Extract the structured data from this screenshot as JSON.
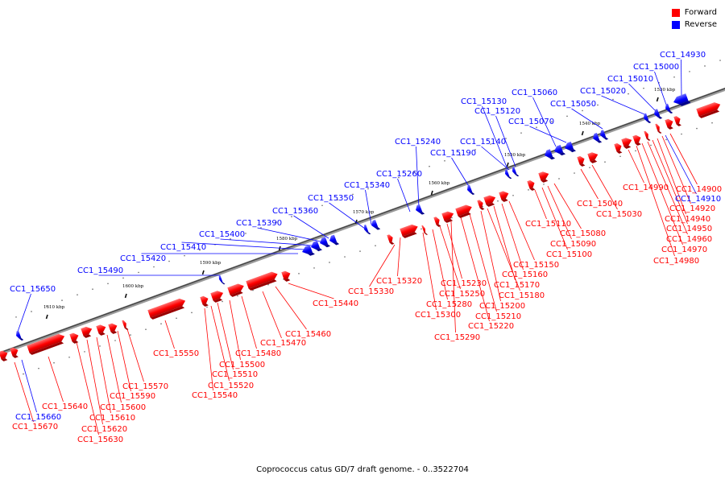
{
  "legend": {
    "forward_label": "Forward",
    "reverse_label": "Reverse",
    "forward_color": "#ff0000",
    "reverse_color": "#0000ff"
  },
  "caption": "Coprococcus catus GD/7 draft genome. - 0..3522704",
  "axis": {
    "ticks": [
      {
        "kbp": 1530,
        "label": "1530 kbp"
      },
      {
        "kbp": 1540,
        "label": "1540 kbp"
      },
      {
        "kbp": 1550,
        "label": "1550 kbp"
      },
      {
        "kbp": 1560,
        "label": "1560 kbp"
      },
      {
        "kbp": 1570,
        "label": "1570 kbp"
      },
      {
        "kbp": 1580,
        "label": "1580 kbp"
      },
      {
        "kbp": 1590,
        "label": "1590 kbp"
      },
      {
        "kbp": 1600,
        "label": "1600 kbp"
      },
      {
        "kbp": 1610,
        "label": "1610 kbp"
      }
    ]
  },
  "genes": [
    {
      "id": "CC1_14900",
      "strand": "forward"
    },
    {
      "id": "CC1_14910",
      "strand": "reverse"
    },
    {
      "id": "CC1_14920",
      "strand": "forward"
    },
    {
      "id": "CC1_14930",
      "strand": "reverse"
    },
    {
      "id": "CC1_14940",
      "strand": "forward"
    },
    {
      "id": "CC1_14950",
      "strand": "forward"
    },
    {
      "id": "CC1_14960",
      "strand": "forward"
    },
    {
      "id": "CC1_14970",
      "strand": "forward"
    },
    {
      "id": "CC1_14980",
      "strand": "forward"
    },
    {
      "id": "CC1_14990",
      "strand": "forward"
    },
    {
      "id": "CC1_15000",
      "strand": "reverse"
    },
    {
      "id": "CC1_15010",
      "strand": "reverse"
    },
    {
      "id": "CC1_15020",
      "strand": "reverse"
    },
    {
      "id": "CC1_15030",
      "strand": "forward"
    },
    {
      "id": "CC1_15040",
      "strand": "forward"
    },
    {
      "id": "CC1_15050",
      "strand": "reverse"
    },
    {
      "id": "CC1_15060",
      "strand": "reverse"
    },
    {
      "id": "CC1_15070",
      "strand": "reverse"
    },
    {
      "id": "CC1_15080",
      "strand": "forward"
    },
    {
      "id": "CC1_15090",
      "strand": "forward"
    },
    {
      "id": "CC1_15100",
      "strand": "forward"
    },
    {
      "id": "CC1_15110",
      "strand": "forward"
    },
    {
      "id": "CC1_15120",
      "strand": "reverse"
    },
    {
      "id": "CC1_15130",
      "strand": "reverse"
    },
    {
      "id": "CC1_15140",
      "strand": "reverse"
    },
    {
      "id": "CC1_15150",
      "strand": "forward"
    },
    {
      "id": "CC1_15160",
      "strand": "forward"
    },
    {
      "id": "CC1_15170",
      "strand": "forward"
    },
    {
      "id": "CC1_15180",
      "strand": "forward"
    },
    {
      "id": "CC1_15190",
      "strand": "reverse"
    },
    {
      "id": "CC1_15200",
      "strand": "forward"
    },
    {
      "id": "CC1_15210",
      "strand": "forward"
    },
    {
      "id": "CC1_15220",
      "strand": "forward"
    },
    {
      "id": "CC1_15230",
      "strand": "forward"
    },
    {
      "id": "CC1_15240",
      "strand": "reverse"
    },
    {
      "id": "CC1_15250",
      "strand": "forward"
    },
    {
      "id": "CC1_15260",
      "strand": "reverse"
    },
    {
      "id": "CC1_15280",
      "strand": "forward"
    },
    {
      "id": "CC1_15290",
      "strand": "forward"
    },
    {
      "id": "CC1_15300",
      "strand": "forward"
    },
    {
      "id": "CC1_15320",
      "strand": "forward"
    },
    {
      "id": "CC1_15330",
      "strand": "forward"
    },
    {
      "id": "CC1_15340",
      "strand": "reverse"
    },
    {
      "id": "CC1_15350",
      "strand": "reverse"
    },
    {
      "id": "CC1_15360",
      "strand": "reverse"
    },
    {
      "id": "CC1_15390",
      "strand": "reverse"
    },
    {
      "id": "CC1_15400",
      "strand": "reverse"
    },
    {
      "id": "CC1_15410",
      "strand": "reverse"
    },
    {
      "id": "CC1_15420",
      "strand": "reverse"
    },
    {
      "id": "CC1_15440",
      "strand": "forward"
    },
    {
      "id": "CC1_15460",
      "strand": "forward"
    },
    {
      "id": "CC1_15470",
      "strand": "forward"
    },
    {
      "id": "CC1_15480",
      "strand": "forward"
    },
    {
      "id": "CC1_15490",
      "strand": "reverse"
    },
    {
      "id": "CC1_15500",
      "strand": "forward"
    },
    {
      "id": "CC1_15510",
      "strand": "forward"
    },
    {
      "id": "CC1_15520",
      "strand": "forward"
    },
    {
      "id": "CC1_15540",
      "strand": "forward"
    },
    {
      "id": "CC1_15550",
      "strand": "forward"
    },
    {
      "id": "CC1_15570",
      "strand": "forward"
    },
    {
      "id": "CC1_15590",
      "strand": "forward"
    },
    {
      "id": "CC1_15600",
      "strand": "forward"
    },
    {
      "id": "CC1_15610",
      "strand": "forward"
    },
    {
      "id": "CC1_15620",
      "strand": "forward"
    },
    {
      "id": "CC1_15630",
      "strand": "forward"
    },
    {
      "id": "CC1_15640",
      "strand": "forward"
    },
    {
      "id": "CC1_15650",
      "strand": "reverse"
    },
    {
      "id": "CC1_15660",
      "strand": "reverse"
    },
    {
      "id": "CC1_15670",
      "strand": "forward"
    }
  ]
}
